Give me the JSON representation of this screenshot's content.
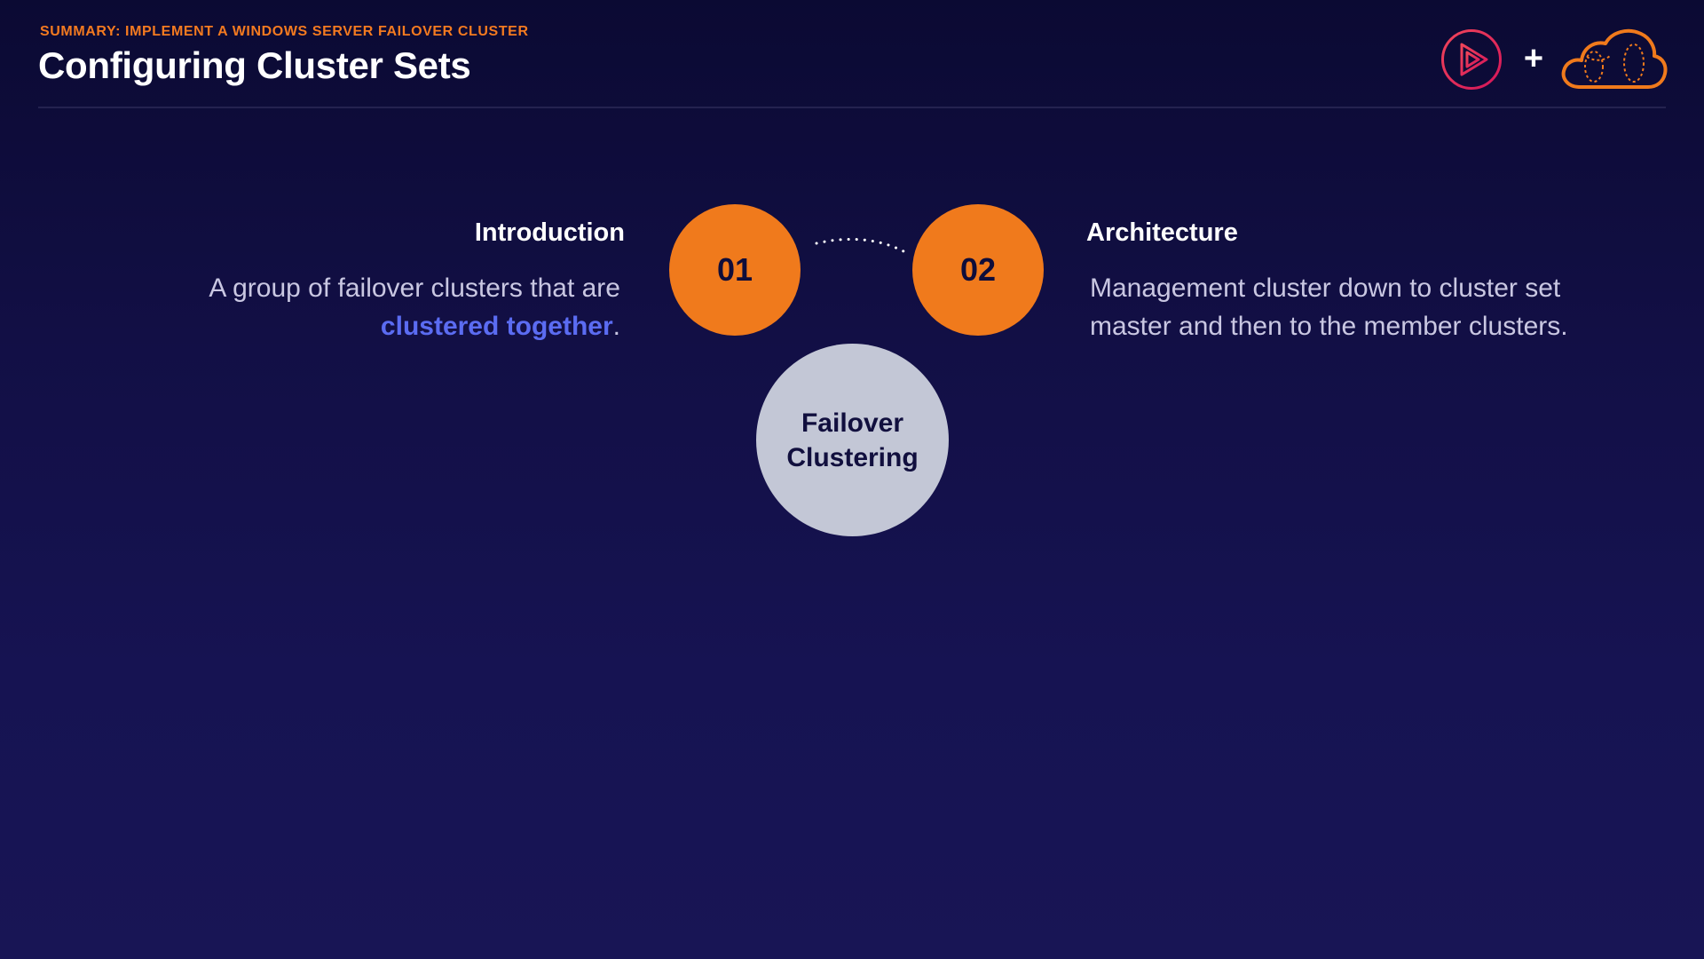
{
  "header": {
    "overline": "SUMMARY: IMPLEMENT A WINDOWS SERVER FAILOVER CLUSTER",
    "title": "Configuring Cluster Sets",
    "plus": "+"
  },
  "steps": [
    {
      "number": "01",
      "heading": "Introduction",
      "body_before": "A group of failover clusters that are",
      "highlight": "clustered together",
      "body_after": "."
    },
    {
      "number": "02",
      "heading": "Architecture",
      "body_line1": "Management cluster down to cluster set",
      "body_line2": "master and then to the member clusters."
    }
  ],
  "center": {
    "line1": "Failover",
    "line2": "Clustering"
  },
  "icons": {
    "brand_logo": "play-logo-icon",
    "partner_logo": "cloud-logo-icon",
    "connector": "dotted-connector-icon"
  },
  "colors": {
    "accent_orange": "#f07a1c",
    "highlight_blue": "#5b6cf2",
    "center_fill": "#c3c7d6",
    "background": "#120f45"
  }
}
